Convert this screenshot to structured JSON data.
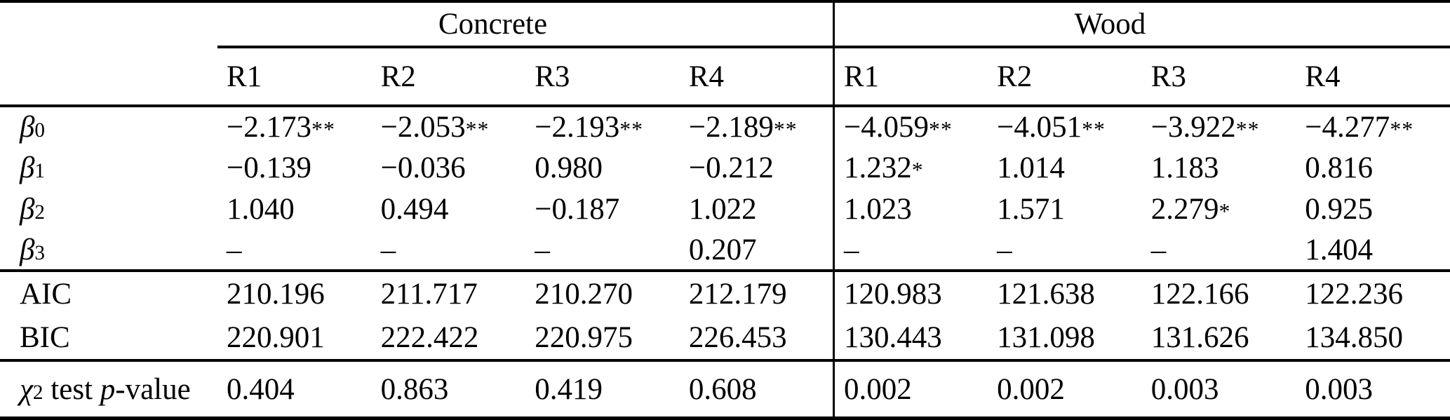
{
  "table": {
    "groups": [
      {
        "label": "Concrete"
      },
      {
        "label": "Wood"
      }
    ],
    "sub_headers": [
      "R1",
      "R2",
      "R3",
      "R4",
      "R1",
      "R2",
      "R3",
      "R4"
    ],
    "beta_rows": [
      {
        "base": "β",
        "sub": "0",
        "cells": [
          {
            "v": "−2.173",
            "s": "**"
          },
          {
            "v": "−2.053",
            "s": "**"
          },
          {
            "v": "−2.193",
            "s": "**"
          },
          {
            "v": "−2.189",
            "s": "**"
          },
          {
            "v": "−4.059",
            "s": "**"
          },
          {
            "v": "−4.051",
            "s": "**"
          },
          {
            "v": "−3.922",
            "s": "**"
          },
          {
            "v": "−4.277",
            "s": "**"
          }
        ]
      },
      {
        "base": "β",
        "sub": "1",
        "cells": [
          {
            "v": "−0.139",
            "s": ""
          },
          {
            "v": "−0.036",
            "s": ""
          },
          {
            "v": "0.980",
            "s": ""
          },
          {
            "v": "−0.212",
            "s": ""
          },
          {
            "v": "1.232",
            "s": "*"
          },
          {
            "v": "1.014",
            "s": ""
          },
          {
            "v": "1.183",
            "s": ""
          },
          {
            "v": "0.816",
            "s": ""
          }
        ]
      },
      {
        "base": "β",
        "sub": "2",
        "cells": [
          {
            "v": "1.040",
            "s": ""
          },
          {
            "v": "0.494",
            "s": ""
          },
          {
            "v": "−0.187",
            "s": ""
          },
          {
            "v": "1.022",
            "s": ""
          },
          {
            "v": "1.023",
            "s": ""
          },
          {
            "v": "1.571",
            "s": ""
          },
          {
            "v": "2.279",
            "s": "*"
          },
          {
            "v": "0.925",
            "s": ""
          }
        ]
      },
      {
        "base": "β",
        "sub": "3",
        "cells": [
          {
            "v": "–",
            "s": ""
          },
          {
            "v": "–",
            "s": ""
          },
          {
            "v": "–",
            "s": ""
          },
          {
            "v": "0.207",
            "s": ""
          },
          {
            "v": "–",
            "s": ""
          },
          {
            "v": "–",
            "s": ""
          },
          {
            "v": "–",
            "s": ""
          },
          {
            "v": "1.404",
            "s": ""
          }
        ]
      }
    ],
    "fit_rows": [
      {
        "label": "AIC",
        "cells": [
          "210.196",
          "211.717",
          "210.270",
          "212.179",
          "120.983",
          "121.638",
          "122.166",
          "122.236"
        ]
      },
      {
        "label": "BIC",
        "cells": [
          "220.901",
          "222.422",
          "220.975",
          "226.453",
          "130.443",
          "131.098",
          "131.626",
          "134.850"
        ]
      }
    ],
    "chi_row": {
      "chi": "χ",
      "power": "2",
      "word_test": "test",
      "p": "p",
      "word_value": "-value",
      "cells": [
        "0.404",
        "0.863",
        "0.419",
        "0.608",
        "0.002",
        "0.002",
        "0.003",
        "0.003"
      ]
    },
    "colors": {
      "text": "#000000",
      "rule": "#000000",
      "background": "#ffffff"
    }
  }
}
